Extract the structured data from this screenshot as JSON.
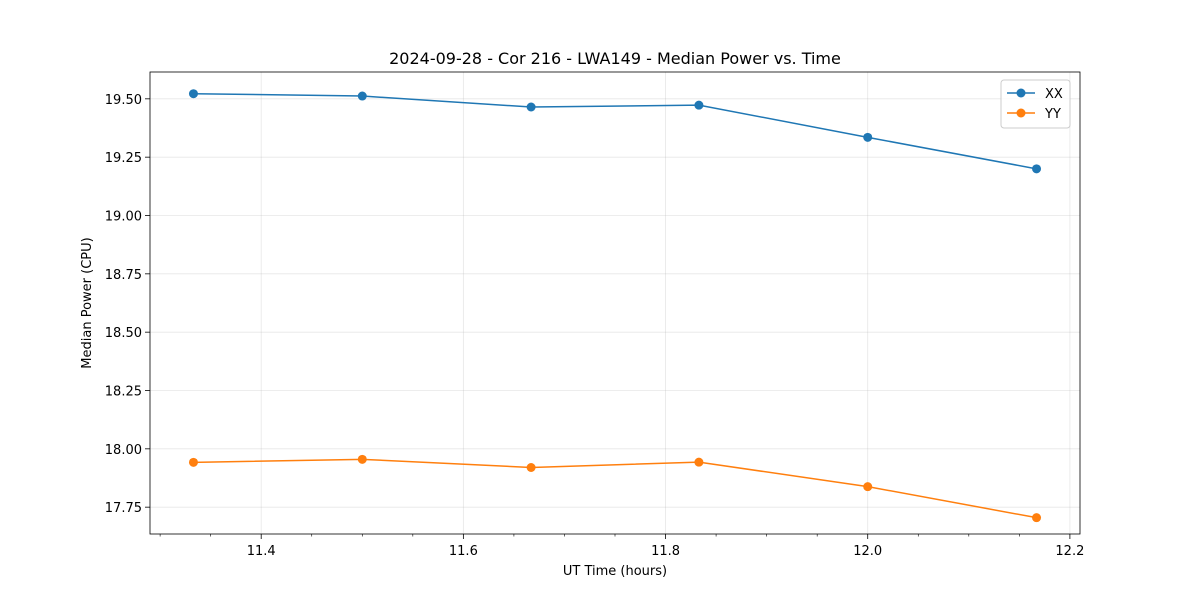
{
  "chart_data": {
    "type": "line",
    "title": "2024-09-28 - Cor 216 - LWA149 - Median Power vs. Time",
    "xlabel": "UT Time (hours)",
    "ylabel": "Median Power (CPU)",
    "xlim": [
      11.29,
      12.21
    ],
    "ylim": [
      17.635,
      19.615
    ],
    "xticks": [
      11.4,
      11.6,
      11.8,
      12.0,
      12.2
    ],
    "xtick_labels": [
      "11.4",
      "11.6",
      "11.8",
      "12.0",
      "12.2"
    ],
    "xminor_step": 0.05,
    "yticks": [
      17.75,
      18.0,
      18.25,
      18.5,
      18.75,
      19.0,
      19.25,
      19.5
    ],
    "ytick_labels": [
      "17.75",
      "18.00",
      "18.25",
      "18.50",
      "18.75",
      "19.00",
      "19.25",
      "19.50"
    ],
    "grid": true,
    "legend_position": "top-right",
    "x": [
      11.333,
      11.5,
      11.667,
      11.833,
      12.0,
      12.167
    ],
    "series": [
      {
        "name": "XX",
        "color": "#1f77b4",
        "values": [
          19.522,
          19.512,
          19.465,
          19.473,
          19.335,
          19.2
        ]
      },
      {
        "name": "YY",
        "color": "#ff7f0e",
        "values": [
          17.942,
          17.955,
          17.92,
          17.943,
          17.838,
          17.705
        ]
      }
    ]
  }
}
